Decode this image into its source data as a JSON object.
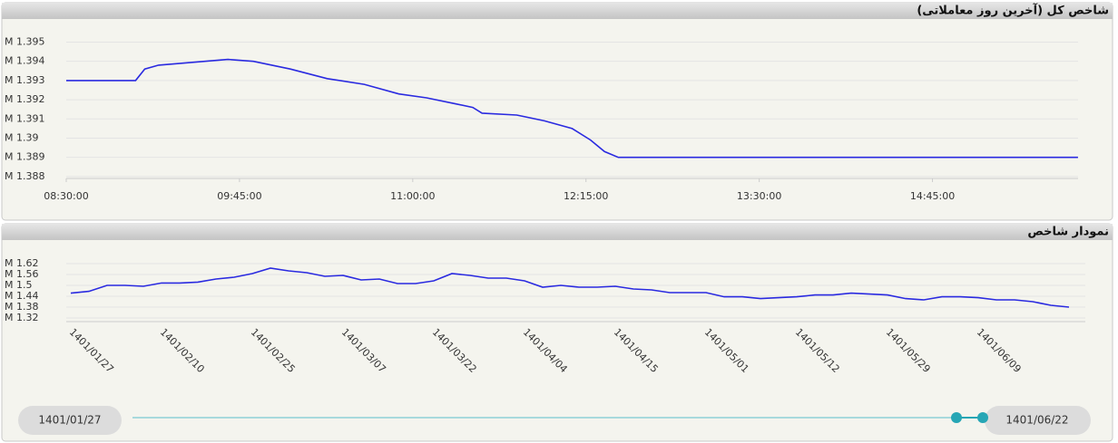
{
  "chart_data": [
    {
      "type": "line",
      "title": "شاخص کل (آخرین روز معاملاتی)",
      "x": [
        "08:30:00",
        "09:00:00",
        "09:04:00",
        "09:10:00",
        "09:20:00",
        "09:30:00",
        "09:40:00",
        "09:51:00",
        "10:07:00",
        "10:23:00",
        "10:39:00",
        "10:54:00",
        "11:06:00",
        "11:18:00",
        "11:26:00",
        "11:30:00",
        "11:45:00",
        "11:57:00",
        "12:09:00",
        "12:17:00",
        "12:23:00",
        "12:29:00",
        "15:48:00"
      ],
      "values": [
        1.393,
        1.393,
        1.3936,
        1.3938,
        1.3939,
        1.394,
        1.3941,
        1.394,
        1.3936,
        1.3931,
        1.3928,
        1.3923,
        1.3921,
        1.3918,
        1.3916,
        1.3913,
        1.3912,
        1.3909,
        1.3905,
        1.3899,
        1.3893,
        1.389,
        1.389
      ],
      "color": "#2a2ae0",
      "xlim": [
        "08:30:00",
        "15:50:00"
      ],
      "xticks": [
        "08:30:00",
        "09:45:00",
        "11:00:00",
        "12:15:00",
        "13:30:00",
        "14:45:00"
      ],
      "ylim": [
        1.3879,
        1.3954
      ],
      "yticks": [
        {
          "value": 1.395,
          "label": "M 1.395"
        },
        {
          "value": 1.394,
          "label": "M 1.394"
        },
        {
          "value": 1.393,
          "label": "M 1.393"
        },
        {
          "value": 1.392,
          "label": "M 1.392"
        },
        {
          "value": 1.391,
          "label": "M 1.391"
        },
        {
          "value": 1.39,
          "label": "M 1.39"
        },
        {
          "value": 1.389,
          "label": "M 1.389"
        },
        {
          "value": 1.388,
          "label": "M 1.388"
        }
      ],
      "grid": true
    },
    {
      "type": "line",
      "title": "نمودار شاخص",
      "categories": [
        "1401/01/27",
        null,
        null,
        null,
        null,
        "1401/02/10",
        null,
        null,
        null,
        null,
        "1401/02/25",
        null,
        null,
        null,
        null,
        "1401/03/07",
        null,
        null,
        null,
        null,
        "1401/03/22",
        null,
        null,
        null,
        null,
        "1401/04/04",
        null,
        null,
        null,
        null,
        "1401/04/15",
        null,
        null,
        null,
        null,
        "1401/05/01",
        null,
        null,
        null,
        null,
        "1401/05/12",
        null,
        null,
        null,
        null,
        "1401/05/29",
        null,
        null,
        null,
        null,
        "1401/06/09",
        null,
        null,
        null,
        null,
        null
      ],
      "values": [
        1.457,
        1.467,
        1.5,
        1.5,
        1.495,
        1.513,
        1.513,
        1.518,
        1.535,
        1.545,
        1.565,
        1.595,
        1.58,
        1.57,
        1.55,
        1.555,
        1.53,
        1.535,
        1.51,
        1.51,
        1.525,
        1.565,
        1.555,
        1.54,
        1.54,
        1.525,
        1.49,
        1.5,
        1.49,
        1.49,
        1.495,
        1.48,
        1.475,
        1.46,
        1.46,
        1.46,
        1.437,
        1.437,
        1.427,
        1.432,
        1.437,
        1.447,
        1.447,
        1.457,
        1.452,
        1.447,
        1.427,
        1.42,
        1.437,
        1.437,
        1.432,
        1.42,
        1.42,
        1.41,
        1.39,
        1.38
      ],
      "color": "#2a2ae0",
      "ylim": [
        1.3,
        1.655
      ],
      "yticks": [
        {
          "value": 1.62,
          "label": "M 1.62"
        },
        {
          "value": 1.56,
          "label": "M 1.56"
        },
        {
          "value": 1.5,
          "label": "M 1.5"
        },
        {
          "value": 1.44,
          "label": "M 1.44"
        },
        {
          "value": 1.38,
          "label": "M 1.38"
        },
        {
          "value": 1.32,
          "label": "M 1.32"
        }
      ],
      "grid": true
    }
  ],
  "range_slider": {
    "start": "1401/01/27",
    "end": "1401/06/22"
  }
}
